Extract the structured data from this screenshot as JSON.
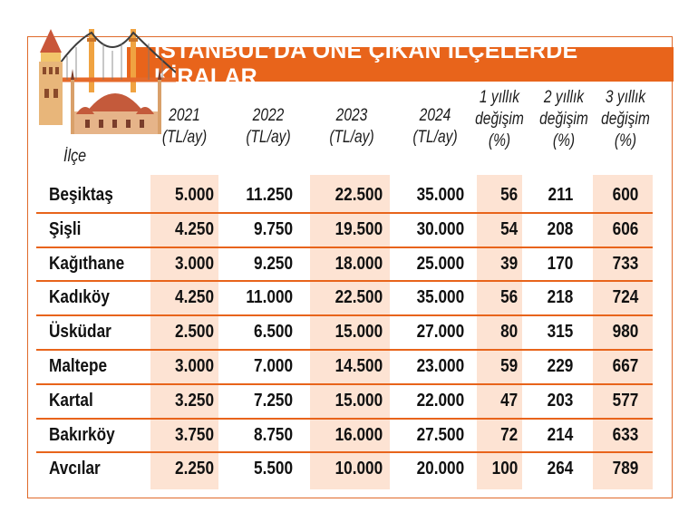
{
  "title": "İSTANBUL’DA ÖNE ÇIKAN İLÇELERDE KİRALAR",
  "illustration": "istanbul-landmarks-illustration",
  "header": {
    "district": "İlçe",
    "y2021": [
      "2021",
      "(TL/ay)"
    ],
    "y2022": [
      "2022",
      "(TL/ay)"
    ],
    "y2023": [
      "2023",
      "(TL/ay)"
    ],
    "y2024": [
      "2024",
      "(TL/ay)"
    ],
    "c1": [
      "1 yıllık",
      "değişim",
      "(%)"
    ],
    "c2": [
      "2 yıllık",
      "değişim",
      "(%)"
    ],
    "c3": [
      "3 yıllık",
      "değişim",
      "(%)"
    ]
  },
  "rows": [
    {
      "name": "Beşiktaş",
      "y2021": "5.000",
      "y2022": "11.250",
      "y2023": "22.500",
      "y2024": "35.000",
      "c1": "56",
      "c2": "211",
      "c3": "600"
    },
    {
      "name": "Şişli",
      "y2021": "4.250",
      "y2022": "9.750",
      "y2023": "19.500",
      "y2024": "30.000",
      "c1": "54",
      "c2": "208",
      "c3": "606"
    },
    {
      "name": "Kağıthane",
      "y2021": "3.000",
      "y2022": "9.250",
      "y2023": "18.000",
      "y2024": "25.000",
      "c1": "39",
      "c2": "170",
      "c3": "733"
    },
    {
      "name": "Kadıköy",
      "y2021": "4.250",
      "y2022": "11.000",
      "y2023": "22.500",
      "y2024": "35.000",
      "c1": "56",
      "c2": "218",
      "c3": "724"
    },
    {
      "name": "Üsküdar",
      "y2021": "2.500",
      "y2022": "6.500",
      "y2023": "15.000",
      "y2024": "27.000",
      "c1": "80",
      "c2": "315",
      "c3": "980"
    },
    {
      "name": "Maltepe",
      "y2021": "3.000",
      "y2022": "7.000",
      "y2023": "14.500",
      "y2024": "23.000",
      "c1": "59",
      "c2": "229",
      "c3": "667"
    },
    {
      "name": "Kartal",
      "y2021": "3.250",
      "y2022": "7.250",
      "y2023": "15.000",
      "y2024": "22.000",
      "c1": "47",
      "c2": "203",
      "c3": "577"
    },
    {
      "name": "Bakırköy",
      "y2021": "3.750",
      "y2022": "8.750",
      "y2023": "16.000",
      "y2024": "27.500",
      "c1": "72",
      "c2": "214",
      "c3": "633"
    },
    {
      "name": "Avcılar",
      "y2021": "2.250",
      "y2022": "5.500",
      "y2023": "10.000",
      "y2024": "20.000",
      "c1": "100",
      "c2": "264",
      "c3": "789"
    }
  ],
  "colors": {
    "accent": "#e8641b",
    "shade": "#fde3d3",
    "text": "#111111"
  }
}
